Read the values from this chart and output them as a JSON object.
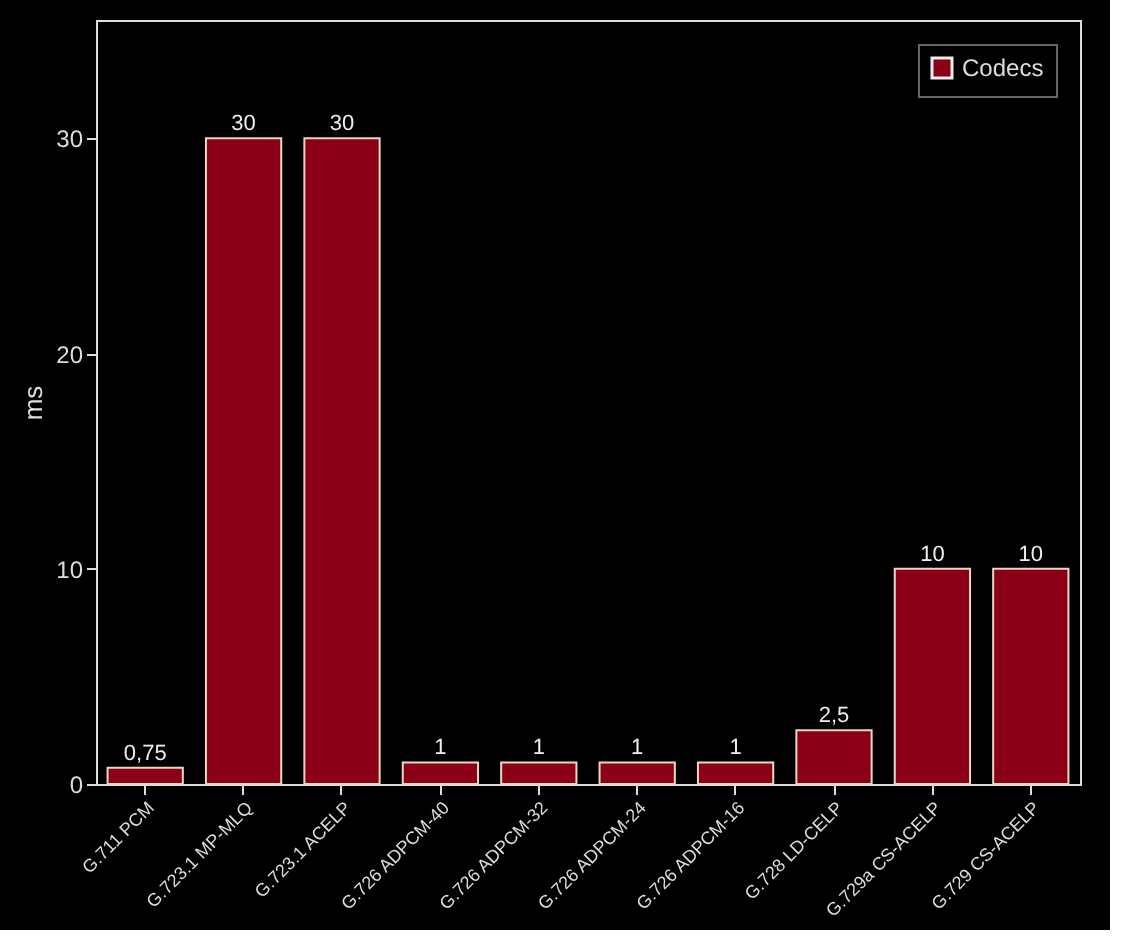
{
  "chart_data": {
    "type": "bar",
    "ylabel": "ms",
    "categories": [
      "G.711 PCM",
      "G.723.1 MP-MLQ",
      "G.723.1 ACELP",
      "G.726 ADPCM-40",
      "G.726 ADPCM-32",
      "G.726 ADPCM-24",
      "G.726 ADPCM-16",
      "G.728 LD-CELP",
      "G.729a CS-ACELP",
      "G.729 CS-ACELP"
    ],
    "series": [
      {
        "name": "Codecs",
        "color": "#8b0016",
        "values": [
          0.75,
          30,
          30,
          1,
          1,
          1,
          1,
          2.5,
          10,
          10
        ]
      }
    ],
    "value_labels": [
      "0,75",
      "30",
      "30",
      "1",
      "1",
      "1",
      "1",
      "2,5",
      "10",
      "10"
    ],
    "ylim": [
      0,
      35.5
    ],
    "yticks": [
      0,
      10,
      20,
      30
    ],
    "grid": false,
    "legend": "top right"
  }
}
